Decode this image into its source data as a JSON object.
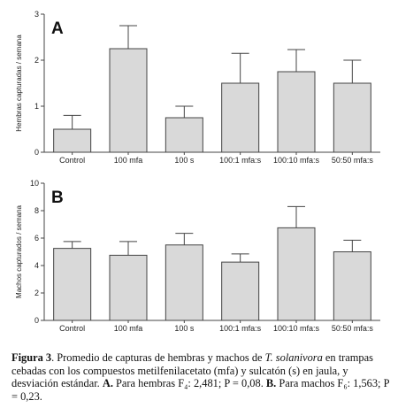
{
  "chart_data": [
    {
      "type": "bar",
      "panel_label": "A",
      "ylabel": "Hembras capturadas / semana",
      "xlabel": "",
      "ylim": [
        0,
        3
      ],
      "yticks": [
        0,
        1,
        2,
        3
      ],
      "categories": [
        "Control",
        "100 mfa",
        "100 s",
        "100:1 mfa:s",
        "100:10 mfa:s",
        "50:50 mfa:s"
      ],
      "values": [
        0.5,
        2.25,
        0.75,
        1.5,
        1.75,
        1.5
      ],
      "error": [
        0.3,
        0.5,
        0.25,
        0.65,
        0.48,
        0.5
      ],
      "grid": false,
      "bar_color": "#d9d9d9"
    },
    {
      "type": "bar",
      "panel_label": "B",
      "ylabel": "Machos capturados / semana",
      "xlabel": "",
      "ylim": [
        0,
        10
      ],
      "yticks": [
        0,
        2,
        4,
        6,
        8,
        10
      ],
      "categories": [
        "Control",
        "100 mfa",
        "100 s",
        "100:1 mfa:s",
        "100:10 mfa:s",
        "50:50 mfa:s"
      ],
      "values": [
        5.25,
        4.75,
        5.5,
        4.25,
        6.75,
        5.0
      ],
      "error": [
        0.5,
        1.0,
        0.85,
        0.6,
        1.55,
        0.85
      ],
      "grid": false,
      "bar_color": "#d9d9d9"
    }
  ],
  "caption": {
    "label": "Figura 3",
    "text_1": ". Promedio de capturas de hembras y machos de ",
    "species": "T. solanivora",
    "text_2": " en trampas cebadas con los compuestos metilfenilacetato (mfa) y sulcatón (s) en jaula, y desviación estándar. ",
    "a_label": "A.",
    "a_text": " Para hembras F₄: 2,481; P = 0,08. ",
    "b_label": "B.",
    "b_text": " Para machos F₆: 1,563; P = 0,23."
  }
}
